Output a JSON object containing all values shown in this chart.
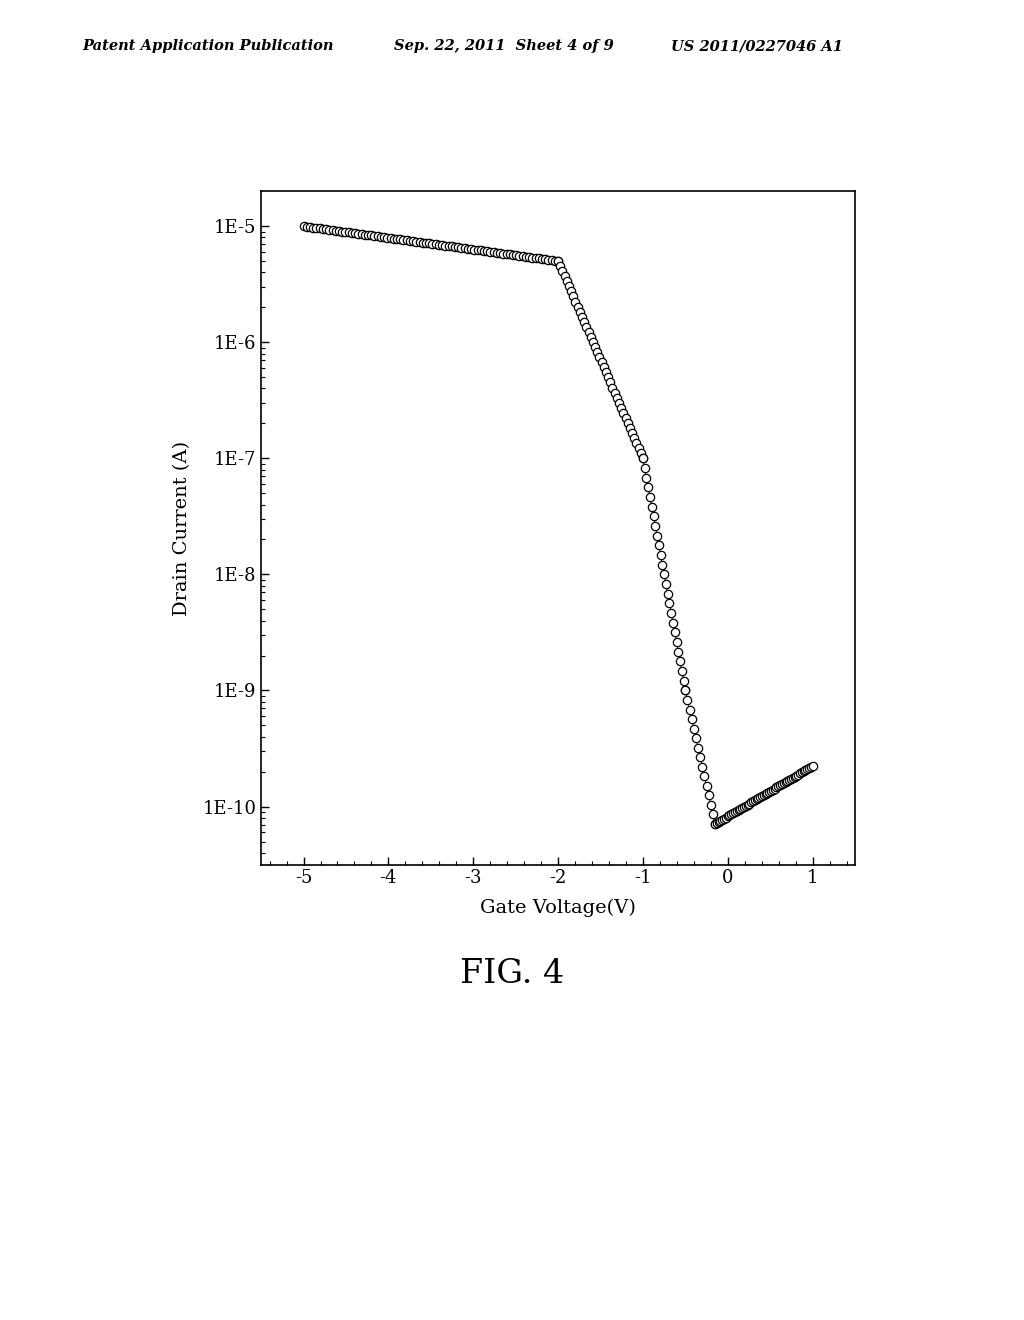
{
  "header_left": "Patent Application Publication",
  "header_mid": "Sep. 22, 2011  Sheet 4 of 9",
  "header_right": "US 2011/0227046 A1",
  "xlabel": "Gate Voltage(V)",
  "ylabel": "Drain Current (A)",
  "fig_label": "FIG. 4",
  "xticks": [
    -5,
    -4,
    -3,
    -2,
    -1,
    0,
    1
  ],
  "ytick_labels": [
    "1E-10",
    "1E-9",
    "1E-8",
    "1E-7",
    "1E-6",
    "1E-5"
  ],
  "ytick_values": [
    1e-10,
    1e-09,
    1e-08,
    1e-07,
    1e-06,
    1e-05
  ],
  "background_color": "#ffffff",
  "marker_color": "black",
  "marker_facecolor": "white",
  "marker_size": 6
}
